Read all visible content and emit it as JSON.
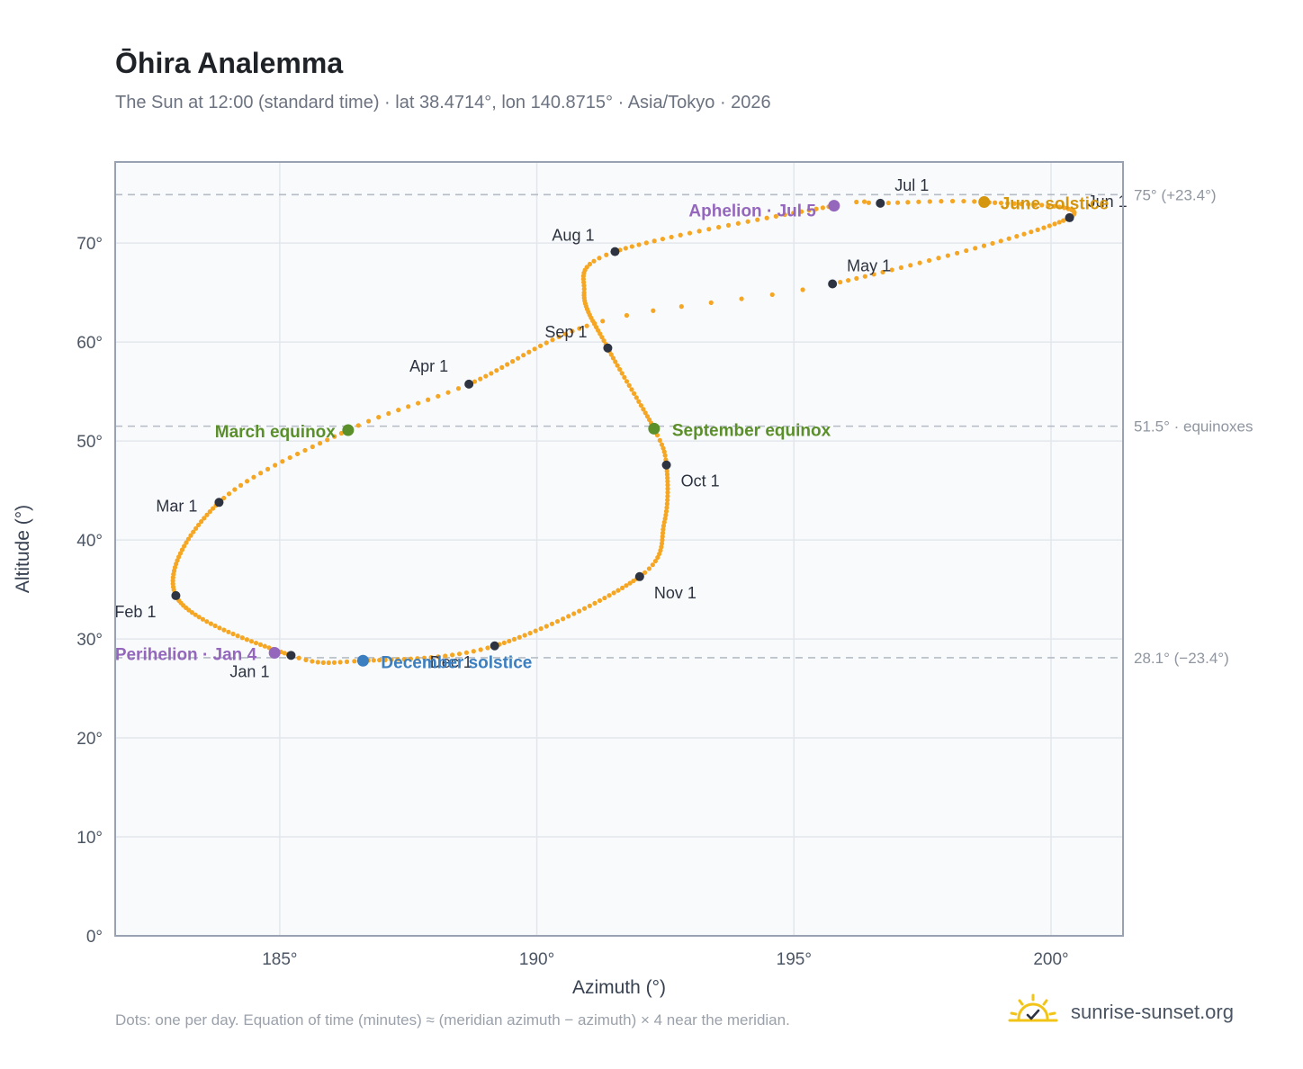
{
  "title": "Ōhira Analemma",
  "subtitle": "The Sun at 12:00 (standard time) · lat 38.4714°, lon 140.8715° · Asia/Tokyo · 2026",
  "footnote": "Dots: one per day. Equation of time (minutes) ≈ (meridian azimuth − azimuth) × 4 near the meridian.",
  "brand": {
    "name": "sunrise-sunset.org",
    "logo_icon": "sun-check-icon"
  },
  "colors": {
    "curve": "#f5a623",
    "month_marker": "#2d3340",
    "equinox": "#5b8f2a",
    "june_solstice": "#d4950f",
    "december_solstice": "#3c7fc0",
    "apsis": "#9467bd",
    "reference_line": "#b5bcc5",
    "plot_bg": "#f8fafc",
    "frame": "#98a2b3"
  },
  "chart_data": {
    "type": "scatter",
    "title": "Ōhira Analemma",
    "xlabel": "Azimuth (°)",
    "ylabel": "Altitude (°)",
    "xlim": [
      181.8,
      201.4
    ],
    "ylim": [
      0,
      78.2
    ],
    "x_ticks": [
      185,
      190,
      195,
      200
    ],
    "x_tick_labels": [
      "185°",
      "190°",
      "195°",
      "200°"
    ],
    "y_ticks": [
      0,
      10,
      20,
      30,
      40,
      50,
      60,
      70
    ],
    "y_tick_labels": [
      "0°",
      "10°",
      "20°",
      "30°",
      "40°",
      "50°",
      "60°",
      "70°"
    ],
    "grid": true,
    "daily_series": {
      "note": "one dot per day",
      "anchors": [
        [
          185.22,
          28.34
        ],
        [
          182.98,
          34.38
        ],
        [
          183.82,
          43.8
        ],
        [
          186.33,
          51.1
        ],
        [
          188.68,
          55.75
        ],
        [
          191.28,
          62.12
        ],
        [
          195.75,
          65.88
        ],
        [
          200.36,
          72.57
        ],
        [
          198.7,
          74.15
        ],
        [
          196.68,
          74.03
        ],
        [
          195.78,
          73.78
        ],
        [
          191.52,
          69.14
        ],
        [
          190.92,
          65.0
        ],
        [
          191.38,
          59.4
        ],
        [
          192.28,
          51.25
        ],
        [
          192.52,
          47.58
        ],
        [
          192.48,
          41.8
        ],
        [
          192.0,
          36.3
        ],
        [
          189.18,
          29.3
        ],
        [
          186.62,
          27.8
        ],
        [
          185.22,
          28.34
        ]
      ],
      "anchor_days": [
        0,
        31,
        59,
        78,
        90,
        112,
        120,
        151,
        171,
        181,
        185,
        212,
        225,
        243,
        265,
        273,
        289,
        304,
        334,
        354,
        365
      ]
    },
    "month_markers": [
      {
        "label": "Jan 1",
        "az": 185.22,
        "alt": 28.34
      },
      {
        "label": "Feb 1",
        "az": 182.98,
        "alt": 34.38
      },
      {
        "label": "Mar 1",
        "az": 183.82,
        "alt": 43.8
      },
      {
        "label": "Apr 1",
        "az": 188.68,
        "alt": 55.75
      },
      {
        "label": "May 1",
        "az": 195.75,
        "alt": 65.88
      },
      {
        "label": "Jun 1",
        "az": 200.36,
        "alt": 72.57
      },
      {
        "label": "Jul 1",
        "az": 196.68,
        "alt": 74.03
      },
      {
        "label": "Aug 1",
        "az": 191.52,
        "alt": 69.14
      },
      {
        "label": "Sep 1",
        "az": 191.38,
        "alt": 59.4
      },
      {
        "label": "Oct 1",
        "az": 192.52,
        "alt": 47.58
      },
      {
        "label": "Nov 1",
        "az": 192.0,
        "alt": 36.3
      },
      {
        "label": "Dec 1",
        "az": 189.18,
        "alt": 29.3
      }
    ],
    "events": [
      {
        "label": "March equinox",
        "az": 186.33,
        "alt": 51.1,
        "kind": "equinox"
      },
      {
        "label": "September equinox",
        "az": 192.28,
        "alt": 51.25,
        "kind": "equinox"
      },
      {
        "label": "June solstice",
        "az": 198.7,
        "alt": 74.15,
        "kind": "june_solstice"
      },
      {
        "label": "December solstice",
        "az": 186.62,
        "alt": 27.8,
        "kind": "december_solstice"
      },
      {
        "label": "Perihelion · Jan 4",
        "az": 184.9,
        "alt": 28.6,
        "kind": "apsis"
      },
      {
        "label": "Aphelion · Jul 5",
        "az": 195.78,
        "alt": 73.78,
        "kind": "apsis"
      }
    ],
    "reference_lines": [
      {
        "value": 74.9,
        "label": "75° (+23.4°)"
      },
      {
        "value": 51.5,
        "label": "51.5° · equinoxes"
      },
      {
        "value": 28.1,
        "label": "28.1° (−23.4°)"
      }
    ]
  }
}
